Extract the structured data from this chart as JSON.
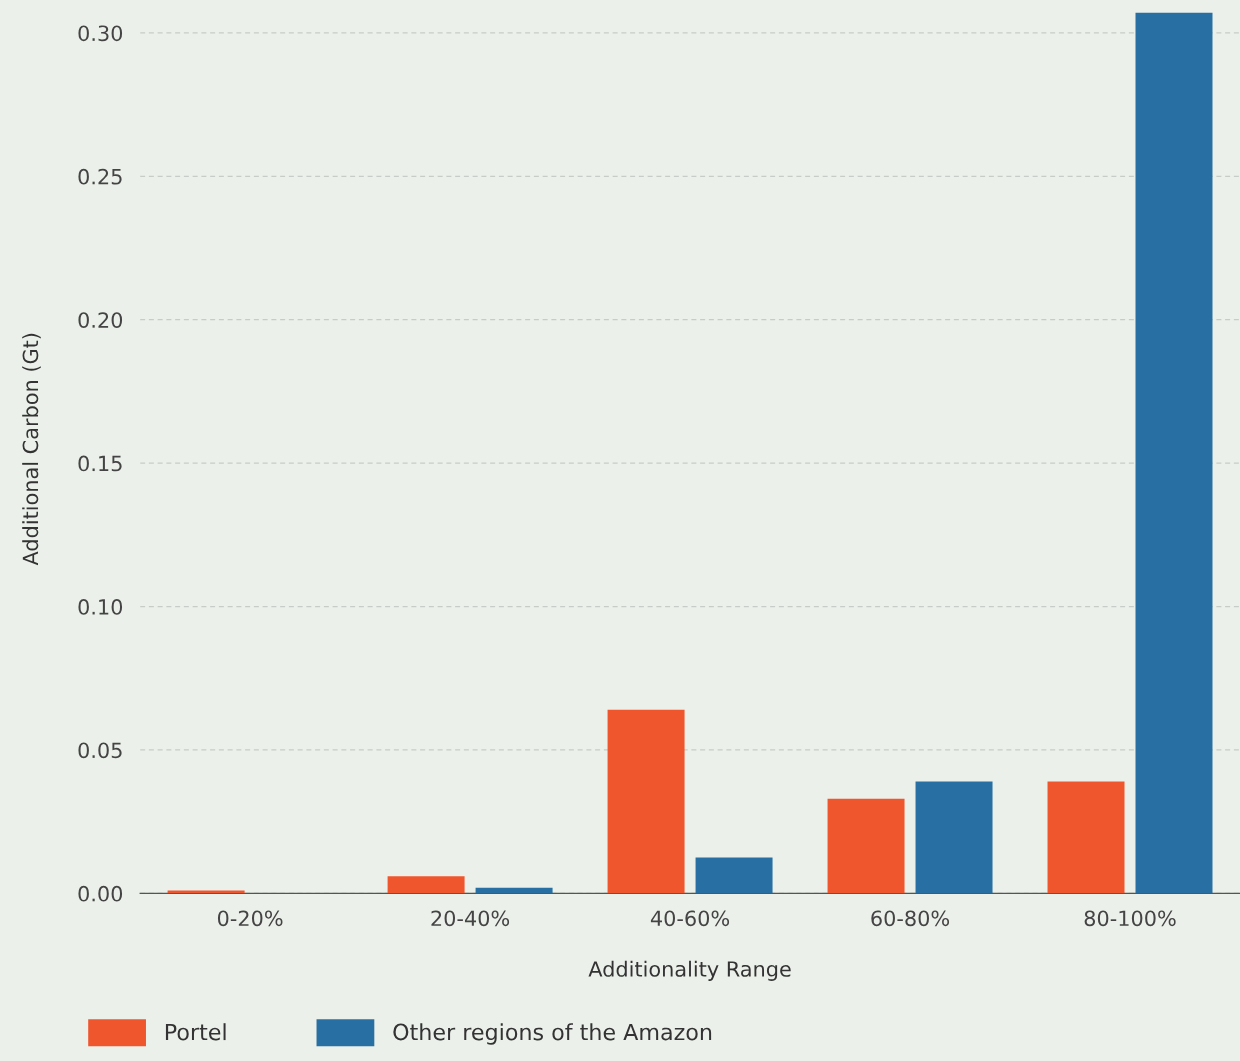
{
  "chart_data": {
    "type": "bar",
    "xlabel": "Additionality Range",
    "ylabel": "Additional Carbon (Gt)",
    "categories": [
      "0-20%",
      "20-40%",
      "40-60%",
      "60-80%",
      "80-100%"
    ],
    "series": [
      {
        "name": "Portel",
        "color": "#f0562e",
        "values": [
          0.001,
          0.006,
          0.064,
          0.033,
          0.039
        ]
      },
      {
        "name": "Other regions of the Amazon",
        "color": "#2870a4",
        "values": [
          0,
          0.002,
          0.0125,
          0.039,
          0.307
        ]
      }
    ],
    "ylim": [
      0,
      0.31
    ],
    "yticks": [
      {
        "value": 0,
        "label": "0.00"
      },
      {
        "value": 0.05,
        "label": "0.05"
      },
      {
        "value": 0.1,
        "label": "0.10"
      },
      {
        "value": 0.15,
        "label": "0.15"
      },
      {
        "value": 0.2,
        "label": "0.20"
      },
      {
        "value": 0.25,
        "label": "0.25"
      },
      {
        "value": 0.3,
        "label": "0.30"
      }
    ],
    "grid": "y",
    "legend": "bottom left"
  }
}
